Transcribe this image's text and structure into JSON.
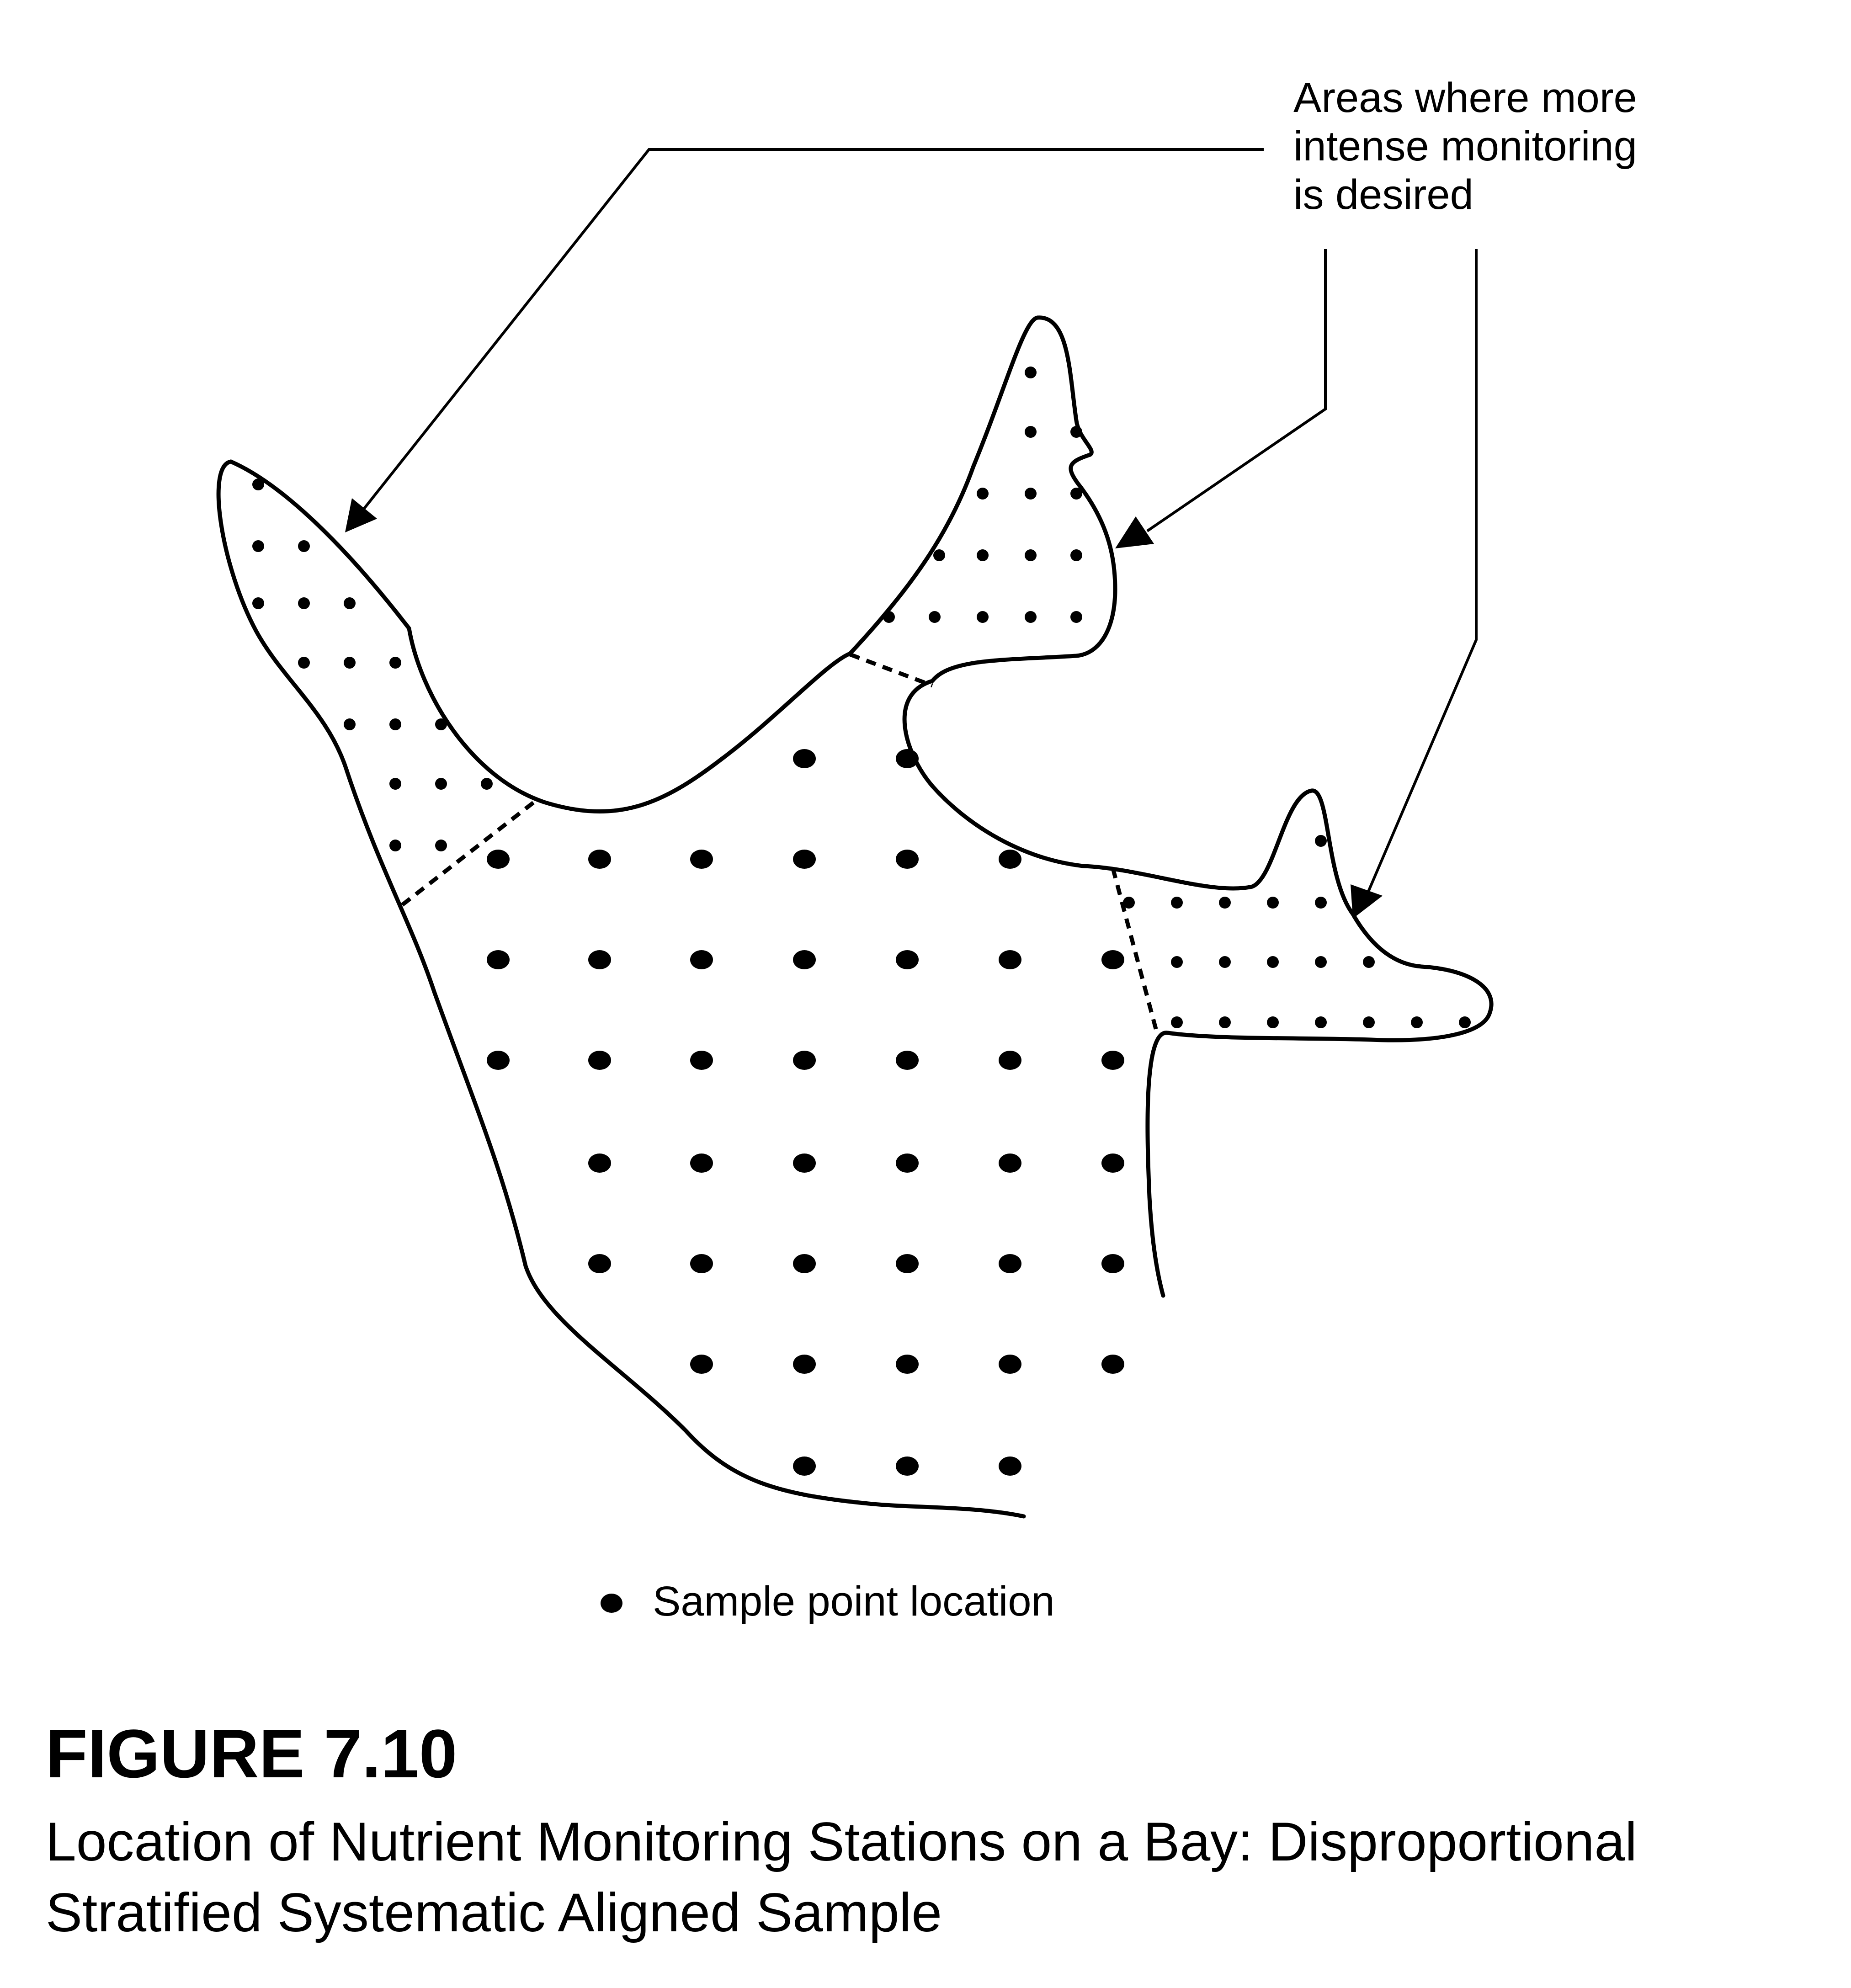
{
  "callout": {
    "lines": [
      "Areas where more",
      "intense monitoring",
      "is desired"
    ]
  },
  "legend": {
    "label": "Sample point location"
  },
  "figure": {
    "number": "FIGURE 7.10",
    "caption_lines": [
      "Location of Nutrient Monitoring Stations on a Bay: Disproportional",
      "Stratified Systematic Aligned Sample"
    ]
  },
  "colors": {
    "ink": "#000000",
    "background": "#ffffff"
  }
}
